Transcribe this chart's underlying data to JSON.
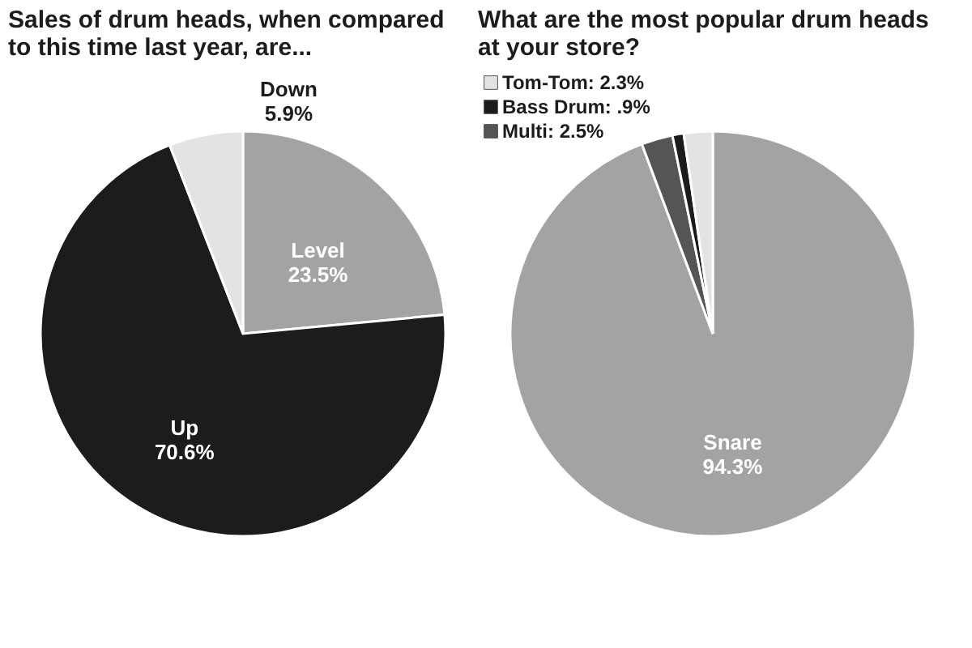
{
  "chart_data": [
    {
      "type": "pie",
      "title": "Sales of drum heads, when compared to this time last year, are...",
      "categories": [
        "Level",
        "Up",
        "Down"
      ],
      "values": [
        23.5,
        70.6,
        5.9
      ],
      "colors": [
        "#a3a3a3",
        "#1c1c1c",
        "#e3e3e3"
      ],
      "value_labels": [
        "23.5%",
        "70.6%",
        "5.9%"
      ],
      "legend": false
    },
    {
      "type": "pie",
      "title": "What are the most popular drum heads at your store?",
      "categories": [
        "Snare",
        "Multi",
        "Bass Drum",
        "Tom-Tom"
      ],
      "values": [
        94.3,
        2.5,
        0.9,
        2.3
      ],
      "colors": [
        "#a3a3a3",
        "#555555",
        "#1c1c1c",
        "#e3e3e3"
      ],
      "value_labels": [
        "94.3%",
        "2.5%",
        ".9%",
        "2.3%"
      ],
      "legend": "top left"
    }
  ]
}
